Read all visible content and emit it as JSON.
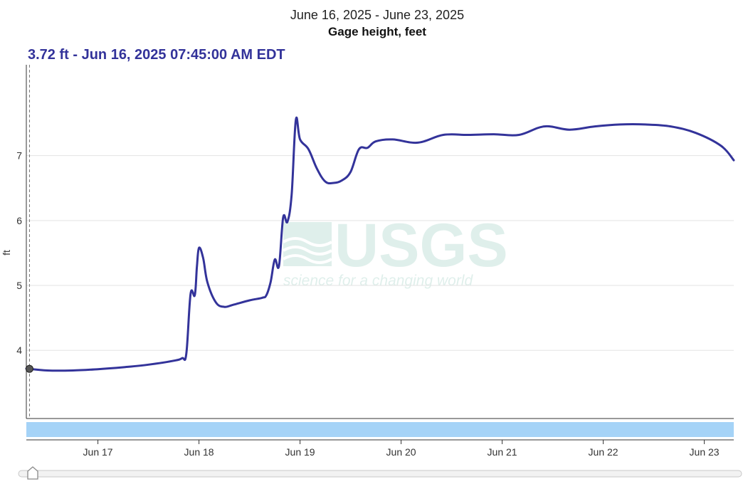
{
  "chart_data": {
    "type": "line",
    "title": "Gage height, feet",
    "subtitle": "June 16, 2025 - June 23, 2025",
    "readout": "3.72 ft - Jun 16, 2025 07:45:00 AM EDT",
    "ylabel": "ft",
    "xlabel": "",
    "ylim": [
      2.95,
      8.4
    ],
    "xlim_days": [
      "Jun 16 07:00",
      "Jun 23 07:00"
    ],
    "y_ticks": [
      4,
      5,
      6,
      7
    ],
    "x_ticks": [
      "Jun 17",
      "Jun 18",
      "Jun 19",
      "Jun 20",
      "Jun 21",
      "Jun 22",
      "Jun 23"
    ],
    "grid": true,
    "line_color": "#33339a",
    "band_color": "#a5d3f7",
    "watermark": {
      "text": "USGS",
      "tagline": "science for a changing world"
    },
    "cursor_time": "Jun 16 07:45",
    "series": [
      {
        "x": [
          "Jun 16 07:00",
          "Jun 16 12:00",
          "Jun 16 18:00",
          "Jun 17 00:00",
          "Jun 17 06:00",
          "Jun 17 12:00",
          "Jun 17 18:00",
          "Jun 17 20:00",
          "Jun 17 21:00",
          "Jun 17 22:00",
          "Jun 17 23:00",
          "Jun 17 23:30",
          "Jun 18 00:00",
          "Jun 18 01:00",
          "Jun 18 02:00",
          "Jun 18 04:00",
          "Jun 18 06:00",
          "Jun 18 08:00",
          "Jun 18 12:00",
          "Jun 18 15:00",
          "Jun 18 16:00",
          "Jun 18 17:00",
          "Jun 18 18:00",
          "Jun 18 19:00",
          "Jun 18 20:00",
          "Jun 18 21:00",
          "Jun 18 22:00",
          "Jun 18 23:00",
          "Jun 19 00:00",
          "Jun 19 02:00",
          "Jun 19 04:00",
          "Jun 19 06:00",
          "Jun 19 08:00",
          "Jun 19 10:00",
          "Jun 19 12:00",
          "Jun 19 14:00",
          "Jun 19 16:00",
          "Jun 19 18:00",
          "Jun 19 22:00",
          "Jun 20 04:00",
          "Jun 20 10:00",
          "Jun 20 16:00",
          "Jun 20 22:00",
          "Jun 21 04:00",
          "Jun 21 10:00",
          "Jun 21 16:00",
          "Jun 21 22:00",
          "Jun 22 04:00",
          "Jun 22 10:00",
          "Jun 22 16:00",
          "Jun 22 22:00",
          "Jun 23 04:00",
          "Jun 23 07:00"
        ],
        "y": [
          3.72,
          3.69,
          3.69,
          3.71,
          3.74,
          3.78,
          3.84,
          3.88,
          3.95,
          4.87,
          4.85,
          5.28,
          5.58,
          5.42,
          5.05,
          4.74,
          4.67,
          4.7,
          4.77,
          4.81,
          4.85,
          5.05,
          5.4,
          5.3,
          6.05,
          5.98,
          6.4,
          7.55,
          7.25,
          7.1,
          6.8,
          6.6,
          6.58,
          6.62,
          6.75,
          7.1,
          7.12,
          7.22,
          7.25,
          7.2,
          7.32,
          7.32,
          7.33,
          7.32,
          7.45,
          7.4,
          7.45,
          7.48,
          7.48,
          7.45,
          7.35,
          7.15,
          6.93
        ]
      }
    ]
  }
}
